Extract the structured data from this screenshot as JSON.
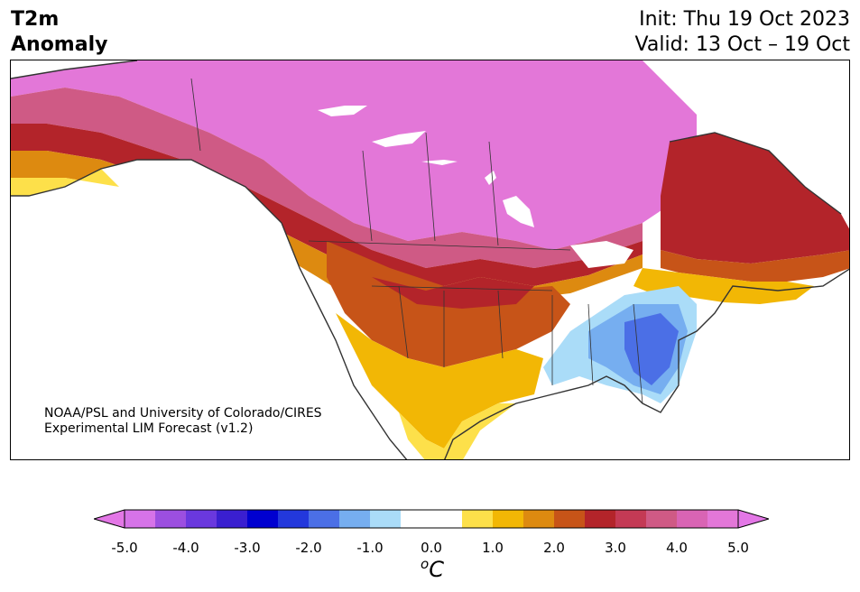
{
  "header": {
    "title_line1": "T2m",
    "title_line2": "Anomaly",
    "init": "Init: Thu 19 Oct 2023",
    "valid": "Valid: 13 Oct – 19 Oct"
  },
  "credit": {
    "line1": "NOAA/PSL and University of Colorado/CIRES",
    "line2": "Experimental LIM Forecast (v1.2)"
  },
  "colorbar": {
    "unit_sup": "o",
    "unit_main": "C",
    "ticks": [
      "-5.0",
      "-4.0",
      "-3.0",
      "-2.0",
      "-1.0",
      "0.0",
      "1.0",
      "2.0",
      "3.0",
      "4.0",
      "5.0"
    ],
    "colors": [
      "#d673e8",
      "#9c4fe0",
      "#6a38de",
      "#3a1fd0",
      "#0000d0",
      "#2338dc",
      "#4b6fe6",
      "#76aef0",
      "#aadcf8",
      "#ffffff",
      "#ffffff",
      "#fde04a",
      "#f2b705",
      "#dd8a10",
      "#c75418",
      "#b3242a",
      "#c43a55",
      "#cf5a85",
      "#d964b4",
      "#e377d8"
    ],
    "under_color": "#e377e6",
    "over_color": "#e377e6"
  },
  "map_colors": {
    "ocean": "#ffffff",
    "land_neutral": "#ffffff",
    "border": "#333333"
  }
}
